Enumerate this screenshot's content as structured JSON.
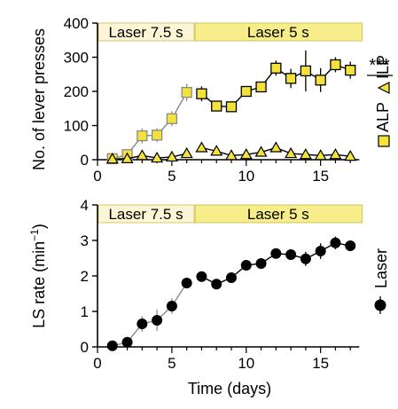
{
  "colors": {
    "alp_fill": "#f3e23c",
    "laser_early_band": "#fdf6d6",
    "laser_late_band": "#f7ed8a",
    "band_stroke": "#c9b94a",
    "early_line": "#8a8a8a",
    "late_line": "#000000",
    "ls_fill": "#000000"
  },
  "chart_data": [
    {
      "type": "line",
      "ylabel": "No. of lever presses",
      "xlim": [
        0,
        18
      ],
      "ylim": [
        0,
        400
      ],
      "xticks": [
        0,
        5,
        10,
        15
      ],
      "yticks": [
        0,
        100,
        200,
        300,
        400
      ],
      "phases": [
        {
          "label": "Laser 7.5 s",
          "x_start": 0,
          "x_end": 6.5
        },
        {
          "label": "Laser 5 s",
          "x_start": 6.5,
          "x_end": 17.8
        }
      ],
      "legend": {
        "position": "right",
        "entries": [
          "ALP",
          "ILP"
        ]
      },
      "significance": "***",
      "x": [
        1,
        2,
        3,
        4,
        5,
        6,
        7,
        8,
        9,
        10,
        11,
        12,
        13,
        14,
        15,
        16,
        17
      ],
      "series": [
        {
          "name": "ALP",
          "marker": "square",
          "values": [
            3,
            15,
            70,
            72,
            120,
            197,
            193,
            157,
            155,
            200,
            213,
            268,
            238,
            260,
            233,
            278,
            262
          ],
          "errors": [
            5,
            8,
            22,
            20,
            22,
            25,
            22,
            10,
            10,
            15,
            15,
            22,
            28,
            60,
            35,
            22,
            25
          ]
        },
        {
          "name": "ILP",
          "marker": "triangle",
          "values": [
            2,
            3,
            12,
            5,
            8,
            18,
            35,
            25,
            12,
            15,
            22,
            35,
            18,
            15,
            12,
            15,
            10
          ],
          "errors": [
            3,
            3,
            5,
            4,
            4,
            8,
            10,
            7,
            5,
            5,
            6,
            8,
            6,
            6,
            5,
            5,
            4
          ]
        }
      ]
    },
    {
      "type": "line",
      "ylabel": "LS rate (min",
      "ylabel_sup": "−1",
      "ylabel_close": ")",
      "xlabel": "Time (days)",
      "xlim": [
        0,
        18
      ],
      "ylim": [
        0,
        4
      ],
      "xticks": [
        0,
        5,
        10,
        15
      ],
      "yticks": [
        0,
        1,
        2,
        3,
        4
      ],
      "phases": [
        {
          "label": "Laser 7.5 s",
          "x_start": 0,
          "x_end": 6.5
        },
        {
          "label": "Laser 5 s",
          "x_start": 6.5,
          "x_end": 17.8
        }
      ],
      "legend": {
        "position": "right",
        "entries": [
          "Laser"
        ]
      },
      "x": [
        1,
        2,
        3,
        4,
        5,
        6,
        7,
        8,
        9,
        10,
        11,
        12,
        13,
        14,
        15,
        16,
        17
      ],
      "series": [
        {
          "name": "Laser",
          "marker": "circle",
          "values": [
            0.03,
            0.13,
            0.65,
            0.75,
            1.15,
            1.8,
            1.98,
            1.77,
            1.95,
            2.3,
            2.35,
            2.63,
            2.6,
            2.48,
            2.7,
            2.93,
            2.85
          ],
          "errors": [
            0.05,
            0.07,
            0.22,
            0.3,
            0.22,
            0.12,
            0.12,
            0.1,
            0.08,
            0.1,
            0.1,
            0.12,
            0.1,
            0.2,
            0.22,
            0.18,
            0.12
          ]
        }
      ]
    }
  ]
}
